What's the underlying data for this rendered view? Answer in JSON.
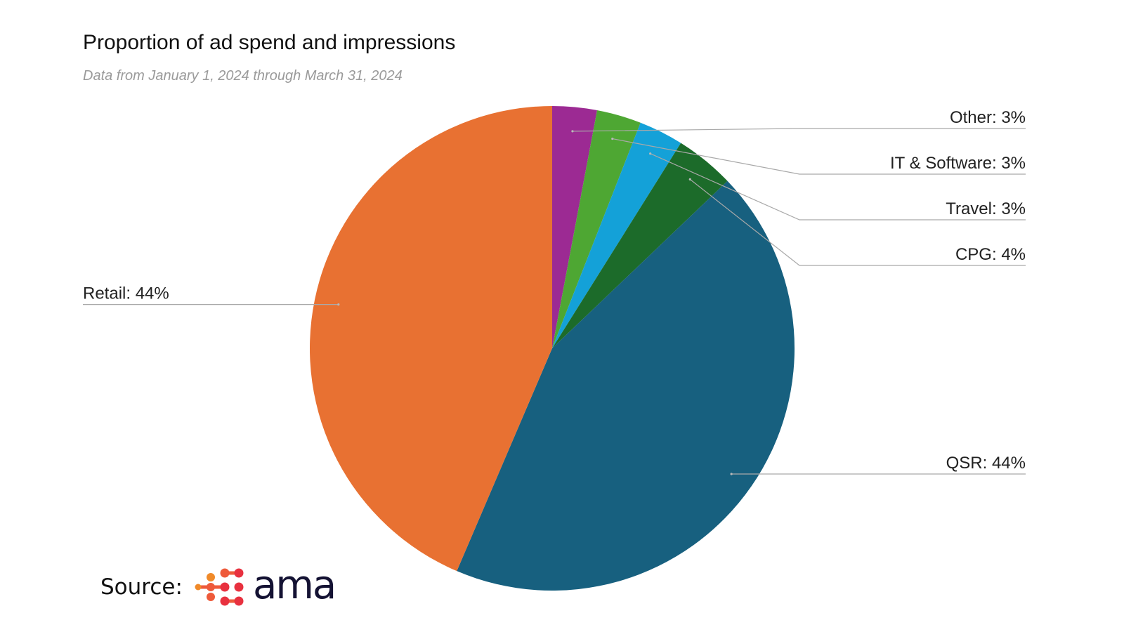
{
  "chart_data": {
    "type": "pie",
    "title": "Proportion of ad spend and impressions",
    "subtitle": "Data from January 1, 2024 through March 31, 2024",
    "slices": [
      {
        "name": "Other",
        "value": 3,
        "label": "Other: 3%",
        "color": "#9C2A93"
      },
      {
        "name": "IT & Software",
        "value": 3,
        "label": "IT & Software: 3%",
        "color": "#4EA733"
      },
      {
        "name": "Travel",
        "value": 3,
        "label": "Travel: 3%",
        "color": "#14A1D8"
      },
      {
        "name": "CPG",
        "value": 4,
        "label": "CPG: 4%",
        "color": "#1C6B2A"
      },
      {
        "name": "QSR",
        "value": 44,
        "label": "QSR: 44%",
        "color": "#17607F"
      },
      {
        "name": "Retail",
        "value": 44,
        "label": "Retail: 44%",
        "color": "#E87132"
      }
    ],
    "start_angle": "12 o'clock",
    "direction": "clockwise"
  },
  "source": {
    "label": "Source:",
    "logo_text": "ama",
    "logo_colors": {
      "text": "#141233",
      "dots": [
        "#F08A2A",
        "#EE5A3A",
        "#E8313F"
      ]
    }
  }
}
